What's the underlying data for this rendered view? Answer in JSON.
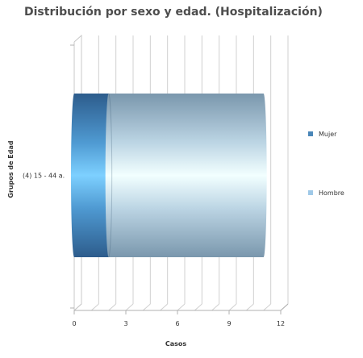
{
  "chart_data": {
    "type": "bar",
    "orientation": "horizontal",
    "stacked": true,
    "style": "3d-cylinder",
    "title": "Distribución por sexo y edad. (Hospitalización)",
    "xlabel": "Casos",
    "ylabel": "Grupos de Edad",
    "categories": [
      "(4) 15 - 44 a."
    ],
    "series": [
      {
        "name": "Mujer",
        "values": [
          2
        ],
        "color": "#4a86b8"
      },
      {
        "name": "Hombre",
        "values": [
          9
        ],
        "color": "#9fc9e8"
      }
    ],
    "xlim": [
      0,
      12
    ],
    "xticks": [
      0,
      3,
      6,
      9,
      12
    ],
    "grid": true,
    "legend_position": "right"
  }
}
